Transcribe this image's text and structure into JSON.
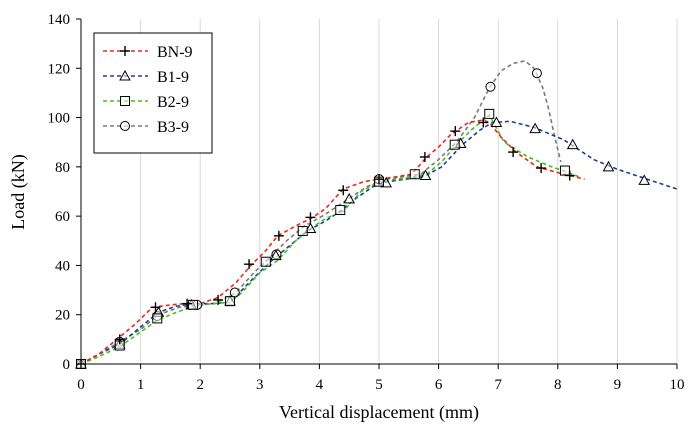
{
  "chart_data": {
    "type": "line",
    "title": "",
    "xlabel": "Vertical displacement (mm)",
    "ylabel": "Load (kN)",
    "xlim": [
      0,
      10
    ],
    "ylim": [
      0,
      140
    ],
    "xticks": [
      "0",
      "1",
      "2",
      "3",
      "4",
      "5",
      "6",
      "7",
      "8",
      "9",
      "10"
    ],
    "yticks": [
      "0",
      "20",
      "40",
      "60",
      "80",
      "100",
      "120",
      "140"
    ],
    "grid": "vertical",
    "legend_position": "top-left",
    "series": [
      {
        "name": "BN-9",
        "color": "#e8291c",
        "marker": "plus",
        "x": [
          0,
          0.3,
          0.6,
          0.9,
          1.2,
          1.5,
          1.75,
          2.0,
          2.3,
          2.6,
          2.85,
          3.1,
          3.3,
          3.6,
          3.85,
          4.1,
          4.4,
          4.75,
          5.0,
          5.3,
          5.55,
          5.8,
          6.0,
          6.2,
          6.5,
          6.75,
          6.85,
          7.05,
          7.3,
          7.65,
          8.1,
          8.45
        ],
        "y": [
          0,
          4,
          10,
          16,
          23,
          24,
          24.5,
          24.5,
          27,
          33,
          40,
          46,
          52,
          56,
          59,
          63,
          71,
          74,
          75,
          76,
          77,
          84,
          88,
          93,
          98,
          99,
          98,
          92,
          86,
          80,
          77,
          75
        ],
        "markers": [
          [
            0,
            0
          ],
          [
            0.65,
            10
          ],
          [
            1.25,
            23
          ],
          [
            1.78,
            24.5
          ],
          [
            2.3,
            26
          ],
          [
            2.82,
            40.5
          ],
          [
            3.32,
            52
          ],
          [
            3.85,
            59.5
          ],
          [
            4.4,
            70.5
          ],
          [
            5.0,
            75
          ],
          [
            5.77,
            84
          ],
          [
            6.28,
            94.5
          ],
          [
            6.75,
            98
          ],
          [
            7.25,
            86
          ],
          [
            7.72,
            79.5
          ],
          [
            8.2,
            76.5
          ]
        ]
      },
      {
        "name": "B1-9",
        "color": "#1c3f94",
        "marker": "triangle",
        "x": [
          0,
          0.3,
          0.65,
          1.0,
          1.3,
          1.6,
          1.9,
          2.2,
          2.5,
          2.9,
          3.2,
          3.5,
          3.8,
          4.1,
          4.35,
          4.6,
          4.9,
          5.15,
          5.45,
          5.75,
          6.05,
          6.4,
          6.7,
          6.9,
          7.2,
          7.6,
          8.1,
          8.6,
          9.0,
          9.5,
          10.0
        ],
        "y": [
          0,
          4,
          8,
          15,
          21,
          23.5,
          24.5,
          24.5,
          25,
          35,
          42,
          48,
          54,
          58,
          62,
          67,
          72,
          74,
          75,
          76,
          80,
          89,
          95,
          98,
          98.5,
          96,
          91,
          83,
          79,
          75,
          71
        ],
        "markers": [
          [
            0,
            0
          ],
          [
            0.65,
            8
          ],
          [
            1.3,
            21
          ],
          [
            1.85,
            24
          ],
          [
            2.5,
            25.5
          ],
          [
            3.27,
            44
          ],
          [
            3.85,
            55
          ],
          [
            4.5,
            67
          ],
          [
            5.12,
            73.5
          ],
          [
            5.78,
            76.5
          ],
          [
            6.37,
            89.5
          ],
          [
            6.97,
            98
          ],
          [
            7.62,
            95.5
          ],
          [
            8.25,
            89
          ],
          [
            8.85,
            80
          ],
          [
            9.45,
            74.5
          ]
        ]
      },
      {
        "name": "B2-9",
        "color": "#42c21f",
        "marker": "square",
        "x": [
          0,
          0.3,
          0.65,
          1.0,
          1.3,
          1.6,
          1.9,
          2.2,
          2.5,
          2.7,
          3.0,
          3.3,
          3.6,
          3.85,
          4.1,
          4.4,
          4.7,
          5.0,
          5.3,
          5.6,
          5.8,
          6.05,
          6.3,
          6.55,
          6.85,
          7.1,
          7.5,
          7.9,
          8.15,
          8.35
        ],
        "y": [
          0,
          3,
          7,
          13,
          18,
          21,
          23.5,
          24.5,
          25,
          29,
          37,
          42,
          50,
          55,
          59,
          62,
          70,
          74,
          75,
          76,
          77,
          82,
          89,
          95,
          101,
          90,
          84,
          80,
          78,
          76
        ],
        "markers": [
          [
            0,
            0
          ],
          [
            0.65,
            7.5
          ],
          [
            1.28,
            18.5
          ],
          [
            1.88,
            24
          ],
          [
            2.5,
            25.5
          ],
          [
            3.1,
            41.5
          ],
          [
            3.72,
            54
          ],
          [
            4.35,
            62.5
          ],
          [
            5.0,
            74
          ],
          [
            5.6,
            77
          ],
          [
            6.27,
            89
          ],
          [
            6.85,
            101.5
          ],
          [
            8.12,
            78.5
          ]
        ]
      },
      {
        "name": "B3-9",
        "color": "#7a7a7a",
        "marker": "circle",
        "x": [
          0,
          0.3,
          0.65,
          1.0,
          1.3,
          1.65,
          1.95,
          2.25,
          2.6,
          2.9,
          3.2,
          3.45,
          3.75,
          4.05,
          4.3,
          4.55,
          4.8,
          5.1,
          5.4,
          5.7,
          6.0,
          6.3,
          6.6,
          6.85,
          7.05,
          7.25,
          7.45,
          7.6,
          7.75,
          7.85,
          7.95,
          8.05
        ],
        "y": [
          0,
          4,
          9,
          14,
          20,
          23,
          24,
          24.5,
          29,
          37,
          44,
          50,
          56,
          60,
          64,
          68,
          72,
          75,
          76,
          77,
          83,
          90,
          100,
          112,
          119,
          122,
          123,
          120,
          112,
          103,
          92,
          82
        ],
        "markers": [
          [
            0,
            0
          ],
          [
            0.65,
            9
          ],
          [
            1.28,
            19.5
          ],
          [
            1.95,
            24
          ],
          [
            2.58,
            29
          ],
          [
            3.28,
            44.5
          ],
          [
            5.0,
            75
          ],
          [
            6.87,
            112.5
          ],
          [
            7.65,
            118
          ]
        ]
      }
    ]
  }
}
